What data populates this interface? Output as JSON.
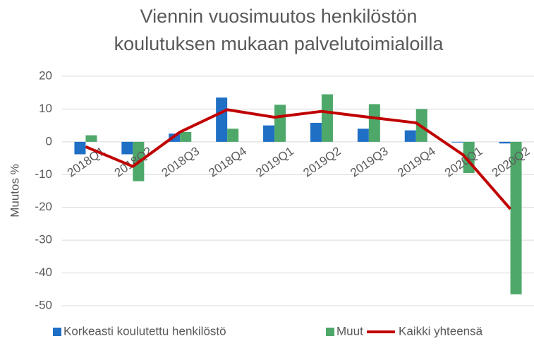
{
  "chart_data": {
    "type": "bar",
    "title": [
      "Viennin vuosimuutos henkilöstön",
      "koulutuksen mukaan palvelutoimialoilla"
    ],
    "y_label": "Muutos %",
    "categories": [
      "2018Q1",
      "2018Q2",
      "2018Q3",
      "2018Q4",
      "2019Q1",
      "2019Q2",
      "2019Q3",
      "2019Q4",
      "2020Q1",
      "2020Q2"
    ],
    "series": [
      {
        "name": "Korkeasti koulutettu henkilöstö",
        "color": "#1f6fc5",
        "type": "bar",
        "values": [
          -3.8,
          -3.8,
          2.5,
          13.5,
          5,
          5.8,
          4,
          3.5,
          -0.2,
          -0.5
        ]
      },
      {
        "name": "Muut",
        "color": "#4ea86a",
        "type": "bar",
        "values": [
          2,
          -12,
          3,
          4,
          11.3,
          14.5,
          11.5,
          10,
          -9.5,
          -46.5
        ]
      },
      {
        "name": "Kaikki yhteensä",
        "color": "#c00000",
        "type": "line",
        "values": [
          -1.5,
          -7.5,
          3,
          9.8,
          7.5,
          9.3,
          7.5,
          5.8,
          -4,
          -20.5
        ]
      }
    ],
    "ylim": [
      -50,
      20
    ],
    "yticks": [
      -50,
      -40,
      -30,
      -20,
      -10,
      0,
      10,
      20
    ],
    "grid": true,
    "legend": "bottom"
  }
}
